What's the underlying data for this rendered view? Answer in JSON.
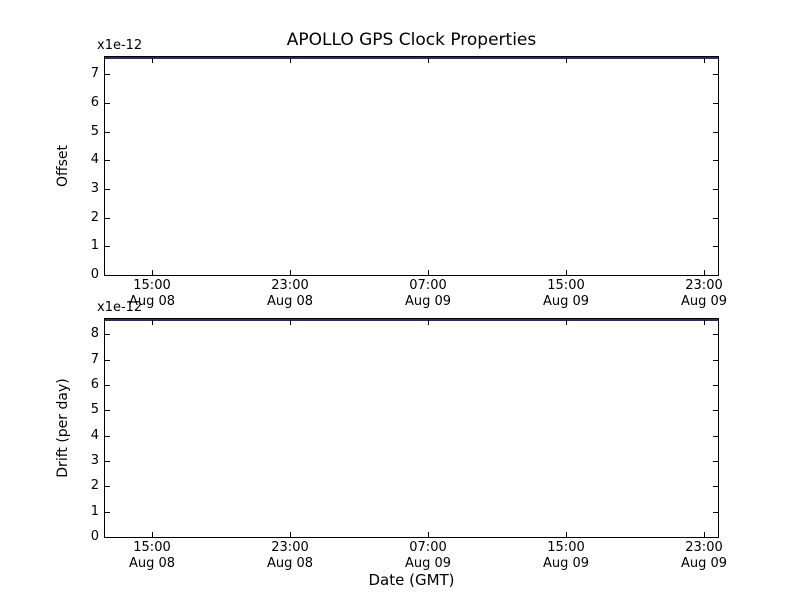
{
  "title": "APOLLO GPS Clock Properties",
  "xlabel": "Date (GMT)",
  "chart_data": [
    {
      "type": "line",
      "name": "gps-clock-offset",
      "subplot_title": "",
      "ylabel": "Offset",
      "scale_label": "x1e-12",
      "ylim": [
        0,
        7.6
      ],
      "yticks": [
        0,
        1,
        2,
        3,
        4,
        5,
        6,
        7
      ],
      "grid": false,
      "legend": null,
      "xticklabels": [
        {
          "time": "15:00",
          "date": "Aug 08"
        },
        {
          "time": "23:00",
          "date": "Aug 08"
        },
        {
          "time": "07:00",
          "date": "Aug 09"
        },
        {
          "time": "15:00",
          "date": "Aug 09"
        },
        {
          "time": "23:00",
          "date": "Aug 09"
        }
      ],
      "series": [
        {
          "name": "Offset",
          "color": "#2e2e60",
          "description": "flat line running along the entire top edge of the axes (clipped at top spine)",
          "x": [
            "Aug 08 15:00",
            "Aug 09 23:00"
          ],
          "values_x1e-12": [
            7.6,
            7.6
          ]
        }
      ]
    },
    {
      "type": "line",
      "name": "gps-clock-drift",
      "subplot_title": "",
      "ylabel": "Drift (per day)",
      "scale_label": "x1e-12",
      "ylim": [
        0,
        8.6
      ],
      "yticks": [
        0,
        1,
        2,
        3,
        4,
        5,
        6,
        7,
        8
      ],
      "grid": false,
      "legend": null,
      "xticklabels": [
        {
          "time": "15:00",
          "date": "Aug 08"
        },
        {
          "time": "23:00",
          "date": "Aug 08"
        },
        {
          "time": "07:00",
          "date": "Aug 09"
        },
        {
          "time": "15:00",
          "date": "Aug 09"
        },
        {
          "time": "23:00",
          "date": "Aug 09"
        }
      ],
      "series": [
        {
          "name": "Drift",
          "color": "#2e2e60",
          "description": "flat line running along the entire top edge of the axes (clipped at top spine)",
          "x": [
            "Aug 08 15:00",
            "Aug 09 23:00"
          ],
          "values_x1e-12": [
            8.6,
            8.6
          ]
        }
      ]
    }
  ]
}
